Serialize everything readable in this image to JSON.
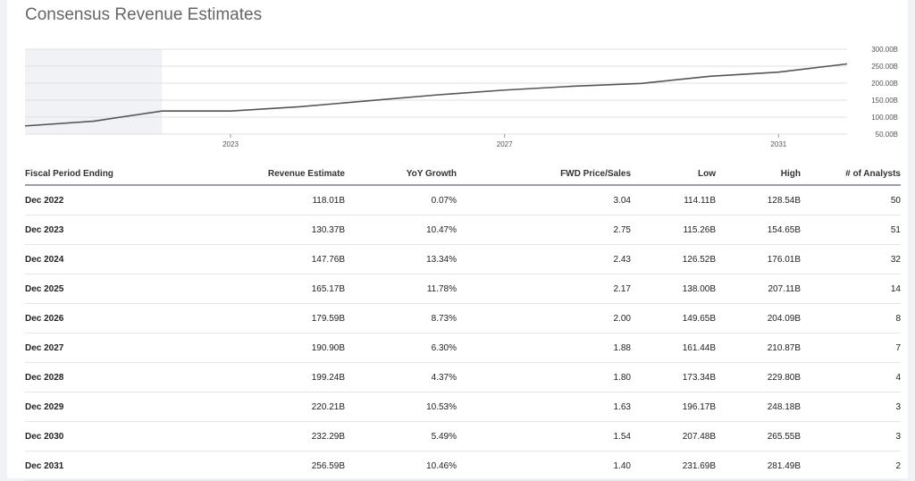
{
  "page": {
    "title": "Consensus Revenue Estimates"
  },
  "chart_data": {
    "type": "line",
    "x": [
      "2020",
      "2021",
      "2022",
      "2023",
      "2024",
      "2025",
      "2026",
      "2027",
      "2028",
      "2029",
      "2030",
      "2031",
      "2032"
    ],
    "series": [
      {
        "values": [
          74,
          88,
          118,
          118.01,
          130.37,
          147.76,
          165.17,
          179.59,
          190.9,
          199.24,
          220.21,
          232.29,
          256.59
        ]
      }
    ],
    "y_ticks": [
      "300.00B",
      "250.00B",
      "200.00B",
      "150.00B",
      "100.00B",
      "50.00B"
    ],
    "x_ticks": [
      "2023",
      "2027",
      "2031"
    ],
    "ylim": [
      50,
      300
    ],
    "grid": true,
    "historical_shaded_region": [
      "2020",
      "2022"
    ],
    "colors": {
      "line": "#555555",
      "shade": "#f1f2f5",
      "grid": "#e0e0e0"
    }
  },
  "table": {
    "headers": [
      "Fiscal Period Ending",
      "Revenue Estimate",
      "YoY Growth",
      "FWD Price/Sales",
      "Low",
      "High",
      "# of Analysts"
    ],
    "rows": [
      [
        "Dec 2022",
        "118.01B",
        "0.07%",
        "3.04",
        "114.11B",
        "128.54B",
        "50"
      ],
      [
        "Dec 2023",
        "130.37B",
        "10.47%",
        "2.75",
        "115.26B",
        "154.65B",
        "51"
      ],
      [
        "Dec 2024",
        "147.76B",
        "13.34%",
        "2.43",
        "126.52B",
        "176.01B",
        "32"
      ],
      [
        "Dec 2025",
        "165.17B",
        "11.78%",
        "2.17",
        "138.00B",
        "207.11B",
        "14"
      ],
      [
        "Dec 2026",
        "179.59B",
        "8.73%",
        "2.00",
        "149.65B",
        "204.09B",
        "8"
      ],
      [
        "Dec 2027",
        "190.90B",
        "6.30%",
        "1.88",
        "161.44B",
        "210.87B",
        "7"
      ],
      [
        "Dec 2028",
        "199.24B",
        "4.37%",
        "1.80",
        "173.34B",
        "229.80B",
        "4"
      ],
      [
        "Dec 2029",
        "220.21B",
        "10.53%",
        "1.63",
        "196.17B",
        "248.18B",
        "3"
      ],
      [
        "Dec 2030",
        "232.29B",
        "5.49%",
        "1.54",
        "207.48B",
        "265.55B",
        "3"
      ],
      [
        "Dec 2031",
        "256.59B",
        "10.46%",
        "1.40",
        "231.69B",
        "281.49B",
        "2"
      ]
    ]
  }
}
